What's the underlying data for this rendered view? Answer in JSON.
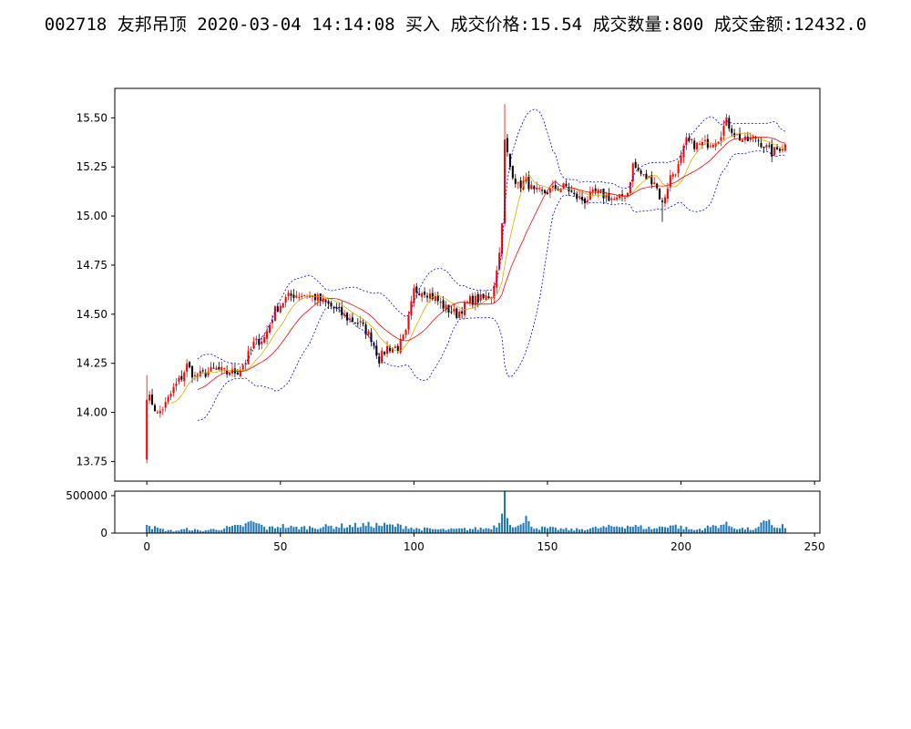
{
  "chart_data": {
    "title": "002718 友邦吊顶 2020-03-04 14:14:08 买入 成交价格:15.54 成交数量:800 成交金额:12432.0",
    "type": "candlestick",
    "price_panel": {
      "ylim": [
        13.65,
        15.65
      ],
      "yticks": [
        "13.75",
        "14.00",
        "14.25",
        "14.50",
        "14.75",
        "15.00",
        "15.25",
        "15.50"
      ],
      "xlim": [
        -12,
        252
      ],
      "xticks": [
        "0",
        "50",
        "100",
        "150",
        "200",
        "250"
      ],
      "series_colors": {
        "up": "#ff0000",
        "down": "#000000",
        "ma_short": "#d4b000",
        "ma_long": "#ff0000",
        "boll": "#0000ff"
      }
    },
    "volume_panel": {
      "ylim": [
        0,
        560000
      ],
      "yticks": [
        "0",
        "500000"
      ],
      "xticks": [
        "0",
        "50",
        "100",
        "150",
        "200",
        "250"
      ],
      "bar_color": "#1f77b4"
    },
    "close_anchors": [
      [
        0,
        14.09
      ],
      [
        2,
        14.05
      ],
      [
        4,
        13.99
      ],
      [
        7,
        14.04
      ],
      [
        10,
        14.12
      ],
      [
        13,
        14.18
      ],
      [
        15,
        14.24
      ],
      [
        18,
        14.18
      ],
      [
        22,
        14.2
      ],
      [
        26,
        14.22
      ],
      [
        30,
        14.2
      ],
      [
        34,
        14.21
      ],
      [
        37,
        14.26
      ],
      [
        40,
        14.35
      ],
      [
        44,
        14.38
      ],
      [
        48,
        14.52
      ],
      [
        52,
        14.58
      ],
      [
        55,
        14.6
      ],
      [
        60,
        14.6
      ],
      [
        64,
        14.58
      ],
      [
        70,
        14.53
      ],
      [
        75,
        14.48
      ],
      [
        80,
        14.45
      ],
      [
        84,
        14.38
      ],
      [
        87,
        14.27
      ],
      [
        90,
        14.33
      ],
      [
        94,
        14.33
      ],
      [
        97,
        14.4
      ],
      [
        100,
        14.62
      ],
      [
        104,
        14.62
      ],
      [
        108,
        14.58
      ],
      [
        112,
        14.53
      ],
      [
        116,
        14.5
      ],
      [
        121,
        14.57
      ],
      [
        126,
        14.58
      ],
      [
        129,
        14.6
      ],
      [
        131,
        14.72
      ],
      [
        133,
        14.95
      ],
      [
        134,
        15.38
      ],
      [
        136,
        15.25
      ],
      [
        139,
        15.15
      ],
      [
        142,
        15.18
      ],
      [
        145,
        15.12
      ],
      [
        149,
        15.12
      ],
      [
        153,
        15.14
      ],
      [
        157,
        15.15
      ],
      [
        160,
        15.1
      ],
      [
        164,
        15.08
      ],
      [
        168,
        15.12
      ],
      [
        172,
        15.1
      ],
      [
        176,
        15.08
      ],
      [
        180,
        15.12
      ],
      [
        182,
        15.26
      ],
      [
        186,
        15.2
      ],
      [
        190,
        15.18
      ],
      [
        193,
        15.06
      ],
      [
        196,
        15.2
      ],
      [
        199,
        15.25
      ],
      [
        202,
        15.38
      ],
      [
        206,
        15.36
      ],
      [
        210,
        15.37
      ],
      [
        214,
        15.4
      ],
      [
        217,
        15.48
      ],
      [
        220,
        15.42
      ],
      [
        224,
        15.38
      ],
      [
        228,
        15.4
      ],
      [
        231,
        15.36
      ],
      [
        234,
        15.32
      ],
      [
        237,
        15.35
      ],
      [
        239,
        15.36
      ]
    ],
    "volume_anchors": [
      [
        0,
        110000
      ],
      [
        1,
        95000
      ],
      [
        3,
        70000
      ],
      [
        6,
        45000
      ],
      [
        10,
        30000
      ],
      [
        16,
        55000
      ],
      [
        20,
        30000
      ],
      [
        35,
        90000
      ],
      [
        40,
        150000
      ],
      [
        45,
        60000
      ],
      [
        50,
        100000
      ],
      [
        55,
        70000
      ],
      [
        85,
        110000
      ],
      [
        98,
        90000
      ],
      [
        100,
        60000
      ],
      [
        112,
        45000
      ],
      [
        128,
        65000
      ],
      [
        130,
        90000
      ],
      [
        132,
        140000
      ],
      [
        133,
        260000
      ],
      [
        134,
        560000
      ],
      [
        135,
        200000
      ],
      [
        137,
        120000
      ],
      [
        139,
        95000
      ],
      [
        141,
        105000
      ],
      [
        142,
        230000
      ],
      [
        143,
        160000
      ],
      [
        144,
        110000
      ],
      [
        146,
        70000
      ],
      [
        160,
        45000
      ],
      [
        180,
        100000
      ],
      [
        190,
        60000
      ],
      [
        196,
        110000
      ],
      [
        205,
        40000
      ],
      [
        216,
        120000
      ],
      [
        218,
        100000
      ],
      [
        222,
        60000
      ],
      [
        228,
        50000
      ],
      [
        232,
        160000
      ],
      [
        236,
        70000
      ],
      [
        238,
        100000
      ],
      [
        239,
        60000
      ]
    ]
  }
}
